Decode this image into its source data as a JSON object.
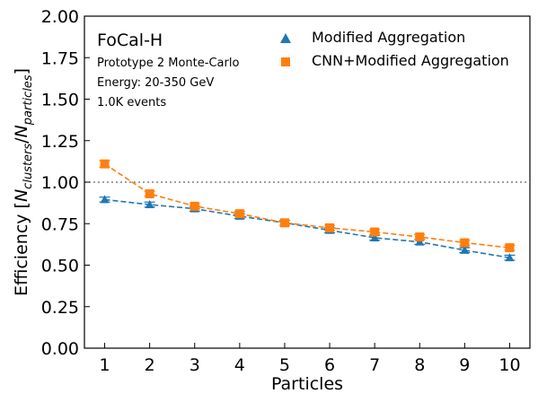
{
  "chart_data": {
    "type": "line",
    "xlabel": "Particles",
    "ylabel": "Efficiency [N_clusters/N_particles]",
    "xlim": [
      0.55,
      10.45
    ],
    "ylim": [
      0.0,
      2.0
    ],
    "x_ticks": [
      1,
      2,
      3,
      4,
      5,
      6,
      7,
      8,
      9,
      10
    ],
    "y_ticks": [
      "0.00",
      "0.25",
      "0.50",
      "0.75",
      "1.00",
      "1.25",
      "1.50",
      "1.75",
      "2.00"
    ],
    "reference_line": 1.0,
    "annotations": {
      "title": "FoCal-H",
      "lines": [
        "Prototype 2 Monte-Carlo",
        "Energy: 20-350 GeV",
        "1.0K events"
      ]
    },
    "legend_position": "top-right",
    "x": [
      1,
      2,
      3,
      4,
      5,
      6,
      7,
      8,
      9,
      10
    ],
    "series": [
      {
        "name": "Modified Aggregation",
        "marker": "triangle",
        "color": "#1f77b4",
        "values": [
          0.895,
          0.865,
          0.84,
          0.795,
          0.755,
          0.71,
          0.665,
          0.64,
          0.59,
          0.545
        ],
        "errors": [
          0.015,
          0.015,
          0.015,
          0.015,
          0.015,
          0.015,
          0.015,
          0.015,
          0.015,
          0.015
        ]
      },
      {
        "name": "CNN+Modified Aggregation",
        "marker": "square",
        "color": "#ff7f0e",
        "values": [
          1.11,
          0.93,
          0.855,
          0.81,
          0.755,
          0.725,
          0.7,
          0.67,
          0.635,
          0.605
        ],
        "errors": [
          0.02,
          0.015,
          0.015,
          0.015,
          0.015,
          0.015,
          0.015,
          0.015,
          0.015,
          0.015
        ]
      }
    ]
  }
}
